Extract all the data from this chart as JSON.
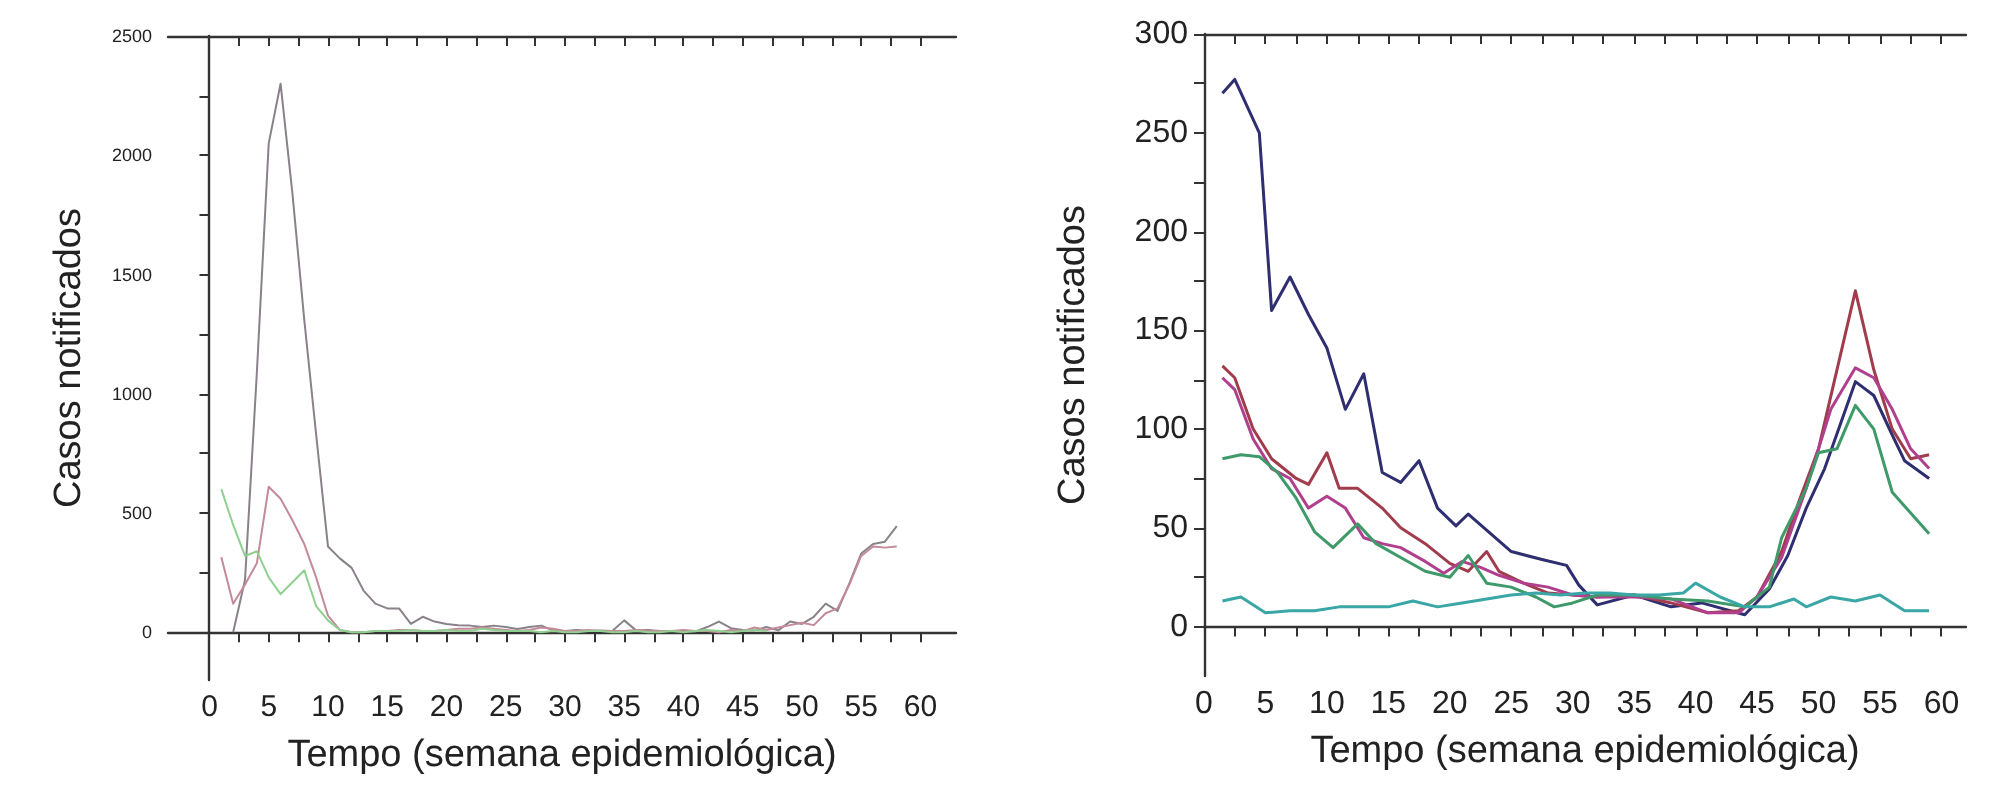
{
  "chart_data": [
    {
      "type": "line",
      "xlabel": "Tempo (semana epidemiológica)",
      "ylabel": "Casos notificados",
      "marker": "none",
      "xlim": [
        -3.5,
        63
      ],
      "ylim": [
        -200,
        2500
      ],
      "xticks": [
        0,
        {
          "value": 2.5,
          "label": null
        },
        5,
        {
          "value": 7.5,
          "label": null
        },
        10,
        {
          "value": 12.5,
          "label": null
        },
        15,
        {
          "value": 17.5,
          "label": null
        },
        20,
        {
          "value": 22.5,
          "label": null
        },
        25,
        {
          "value": 27.5,
          "label": null
        },
        30,
        {
          "value": 32.5,
          "label": null
        },
        35,
        {
          "value": 37.5,
          "label": null
        },
        40,
        {
          "value": 42.5,
          "label": null
        },
        45,
        {
          "value": 47.5,
          "label": null
        },
        50,
        {
          "value": 52.5,
          "label": null
        },
        55,
        {
          "value": 57.5,
          "label": null
        },
        60
      ],
      "yticks": [
        0,
        {
          "value": 250,
          "label": null
        },
        500,
        {
          "value": 750,
          "label": null
        },
        1000,
        {
          "value": 1250,
          "label": null
        },
        1500,
        {
          "value": 1750,
          "label": null
        },
        2000,
        {
          "value": 2250,
          "label": null
        },
        2500
      ],
      "series": [
        {
          "color": "#8a828a",
          "x": [
            2,
            3,
            4,
            5,
            6,
            7,
            8,
            9,
            10,
            11,
            12,
            13,
            14,
            15,
            16,
            17,
            18,
            19,
            20,
            21,
            22,
            23,
            24,
            25,
            26,
            27,
            28,
            29,
            30,
            31,
            32,
            33,
            34,
            35,
            36,
            37,
            38,
            39,
            40,
            41,
            42,
            43,
            44,
            45,
            46,
            47,
            48,
            49,
            50,
            51,
            52,
            53,
            54,
            55,
            56,
            57,
            58
          ],
          "values": [
            0,
            220,
            1090,
            2050,
            2300,
            1840,
            1310,
            830,
            360,
            310,
            270,
            175,
            120,
            100,
            100,
            35,
            65,
            45,
            35,
            30,
            28,
            22,
            28,
            22,
            14,
            22,
            28,
            8,
            5,
            10,
            5,
            8,
            5,
            50,
            8,
            10,
            5,
            5,
            3,
            3,
            22,
            45,
            17,
            10,
            8,
            22,
            8,
            45,
            35,
            65,
            120,
            90,
            205,
            330,
            370,
            380,
            445
          ]
        },
        {
          "color": "#c48a9a",
          "x": [
            1,
            2,
            3,
            4,
            5,
            6,
            7,
            8,
            9,
            10,
            11,
            12,
            13,
            14,
            15,
            16,
            17,
            18,
            19,
            20,
            21,
            22,
            23,
            24,
            25,
            26,
            27,
            28,
            29,
            30,
            31,
            32,
            33,
            34,
            35,
            36,
            37,
            38,
            39,
            40,
            41,
            42,
            43,
            44,
            45,
            46,
            47,
            48,
            49,
            50,
            51,
            52,
            53,
            54,
            55,
            56,
            57,
            58
          ],
          "values": [
            315,
            120,
            200,
            290,
            610,
            560,
            470,
            370,
            230,
            70,
            10,
            0,
            0,
            5,
            5,
            10,
            10,
            5,
            5,
            10,
            15,
            15,
            20,
            15,
            10,
            5,
            10,
            20,
            15,
            5,
            5,
            10,
            5,
            5,
            5,
            10,
            5,
            5,
            5,
            10,
            5,
            5,
            0,
            10,
            5,
            20,
            10,
            20,
            30,
            40,
            30,
            80,
            100,
            200,
            320,
            360,
            355,
            360
          ]
        },
        {
          "color": "#8fd08f",
          "x": [
            1,
            2,
            3,
            4,
            5,
            6,
            7,
            8,
            9,
            10,
            11,
            12,
            13,
            14,
            15,
            16,
            17,
            18,
            19,
            20,
            21,
            22,
            23,
            24,
            25,
            26,
            27,
            28,
            29,
            30,
            31,
            32,
            33,
            34,
            35,
            36,
            37,
            38,
            39,
            40,
            41,
            42,
            43,
            44,
            45,
            46,
            47
          ],
          "values": [
            600,
            450,
            320,
            340,
            230,
            160,
            210,
            260,
            110,
            50,
            10,
            0,
            0,
            5,
            5,
            5,
            10,
            5,
            5,
            10,
            5,
            5,
            15,
            10,
            5,
            5,
            5,
            0,
            5,
            0,
            0,
            5,
            5,
            0,
            0,
            5,
            0,
            0,
            5,
            0,
            5,
            10,
            5,
            0,
            5,
            10,
            5
          ]
        }
      ]
    },
    {
      "type": "line",
      "xlabel": "Tempo (semana epidemiológica)",
      "ylabel": "Casos notificados",
      "marker": "none",
      "xlim": [
        0,
        62
      ],
      "ylim": [
        -25,
        300
      ],
      "xticks": [
        0,
        {
          "value": 2.5,
          "label": null
        },
        5,
        {
          "value": 7.5,
          "label": null
        },
        10,
        {
          "value": 12.5,
          "label": null
        },
        15,
        {
          "value": 17.5,
          "label": null
        },
        20,
        {
          "value": 22.5,
          "label": null
        },
        25,
        {
          "value": 27.5,
          "label": null
        },
        30,
        {
          "value": 32.5,
          "label": null
        },
        35,
        {
          "value": 37.5,
          "label": null
        },
        40,
        {
          "value": 42.5,
          "label": null
        },
        45,
        {
          "value": 47.5,
          "label": null
        },
        50,
        {
          "value": 52.5,
          "label": null
        },
        55,
        {
          "value": 57.5,
          "label": null
        },
        60
      ],
      "yticks": [
        0,
        {
          "value": 25,
          "label": null
        },
        50,
        {
          "value": 75,
          "label": null
        },
        100,
        {
          "value": 125,
          "label": null
        },
        150,
        {
          "value": 175,
          "label": null
        },
        200,
        {
          "value": 225,
          "label": null
        },
        250,
        {
          "value": 275,
          "label": null
        },
        300
      ],
      "series": [
        {
          "color": "#2e2e70",
          "x": [
            1.5,
            2.5,
            4.5,
            5.5,
            7,
            8.5,
            10,
            11.5,
            13,
            14.5,
            16,
            17.5,
            19,
            20.5,
            21.5,
            25,
            27.5,
            29.5,
            30.5,
            32,
            35,
            38,
            40.5,
            44,
            46,
            47.5,
            49,
            50.5,
            53,
            54.5,
            56,
            57,
            59
          ],
          "values": [
            270,
            277,
            250,
            160,
            177,
            158,
            141,
            110,
            128,
            78,
            73,
            84,
            60,
            51,
            57,
            38,
            34,
            31,
            21,
            11,
            16,
            10,
            12,
            6,
            19,
            36,
            60,
            80,
            124,
            117,
            97,
            84,
            75
          ]
        },
        {
          "color": "#a03c4c",
          "x": [
            1.5,
            2.5,
            4,
            5.5,
            7.5,
            8.5,
            10,
            11,
            12.5,
            14.5,
            16,
            18,
            20,
            21.5,
            23,
            24,
            26,
            28,
            30,
            32,
            35,
            38,
            41,
            43.5,
            45,
            47,
            48.5,
            50,
            51.5,
            53,
            54.5,
            56,
            57.5,
            59
          ],
          "values": [
            132,
            126,
            100,
            85,
            75,
            72,
            88,
            70,
            70,
            60,
            50,
            42,
            32,
            28,
            38,
            28,
            22,
            17,
            16,
            15,
            16,
            12,
            7,
            8,
            15,
            38,
            65,
            90,
            130,
            170,
            130,
            100,
            85,
            87
          ]
        },
        {
          "color": "#b0408e",
          "x": [
            1.5,
            2.5,
            4,
            5.5,
            7,
            8.5,
            10,
            11.5,
            13,
            14.5,
            16,
            18,
            19.5,
            21,
            22.5,
            24,
            26,
            28,
            30,
            32,
            35,
            38,
            41,
            43.5,
            45,
            47,
            49,
            51,
            53,
            54.5,
            56,
            57.5,
            59
          ],
          "values": [
            126,
            120,
            95,
            80,
            75,
            60,
            66,
            60,
            45,
            42,
            40,
            33,
            27,
            33,
            30,
            26,
            22,
            20,
            16,
            15,
            15,
            14,
            7,
            7,
            15,
            35,
            70,
            110,
            131,
            126,
            110,
            90,
            80
          ]
        },
        {
          "color": "#3f9a6a",
          "x": [
            1.5,
            3,
            4.5,
            6,
            7.5,
            9,
            10.5,
            12.5,
            14,
            16,
            18,
            20,
            21.5,
            23,
            25,
            27,
            28.5,
            30,
            32,
            35,
            38,
            41,
            44,
            46,
            47,
            49,
            50,
            51.5,
            53,
            54.5,
            56,
            59
          ],
          "values": [
            85,
            87,
            86,
            78,
            65,
            48,
            40,
            52,
            42,
            35,
            28,
            25,
            36,
            22,
            20,
            15,
            10,
            12,
            16,
            16,
            14,
            13,
            10,
            20,
            45,
            70,
            88,
            90,
            112,
            100,
            68,
            47
          ]
        },
        {
          "color": "#3aa6a6",
          "x": [
            1.5,
            3,
            5,
            7,
            9,
            11,
            13,
            15,
            17,
            19,
            21,
            23,
            25,
            27,
            29,
            31,
            33,
            35,
            37,
            39,
            40,
            42,
            44,
            46,
            48,
            49,
            51,
            53,
            55,
            57,
            59
          ],
          "values": [
            13,
            15,
            7,
            8,
            8,
            10,
            10,
            10,
            13,
            10,
            12,
            14,
            16,
            17,
            16,
            17,
            17,
            16,
            16,
            17,
            22,
            15,
            10,
            10,
            14,
            10,
            15,
            13,
            16,
            8,
            8
          ]
        }
      ]
    }
  ]
}
